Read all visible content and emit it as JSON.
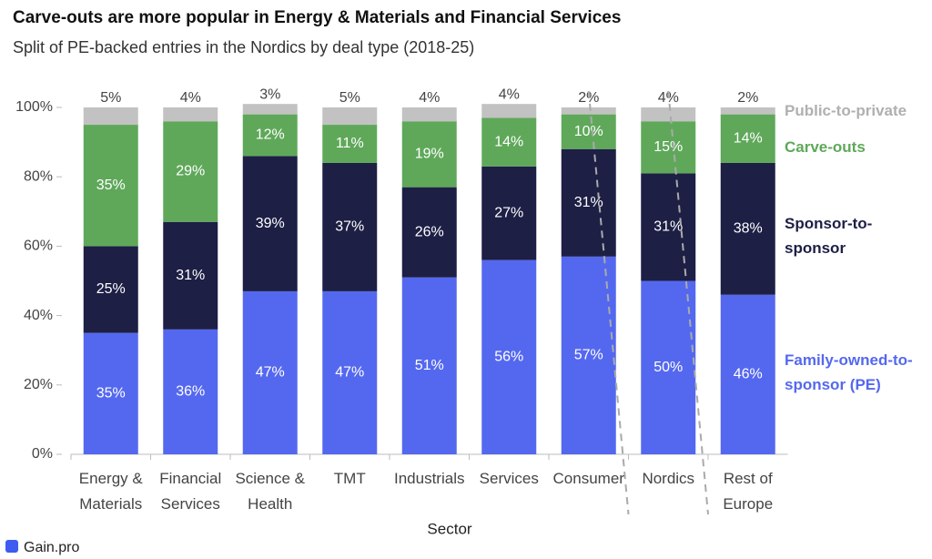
{
  "chart_data": {
    "type": "stacked_bar",
    "title": "Carve-outs are more popular in Energy & Materials and Financial Services",
    "subtitle": "Split of PE-backed entries in the Nordics by deal type (2018-25)",
    "x_label": "Sector",
    "footer": "Gain.pro",
    "categories": [
      "Energy & Materials",
      "Financial Services",
      "Science & Health",
      "TMT",
      "Industrials",
      "Services",
      "Consumer",
      "Nordics",
      "Rest of Europe"
    ],
    "series": [
      {
        "name": "Family-owned-to- sponsor (PE)",
        "color": "#5468ef",
        "values": [
          35,
          36,
          47,
          47,
          51,
          56,
          57,
          50,
          46
        ],
        "value_labels": [
          "35%",
          "36%",
          "47%",
          "47%",
          "51%",
          "56%",
          "57%",
          "50%",
          "46%"
        ]
      },
      {
        "name": "Sponsor-to-sponsor",
        "color": "#1d1f45",
        "values": [
          25,
          31,
          39,
          37,
          26,
          27,
          31,
          31,
          38
        ],
        "value_labels": [
          "25%",
          "31%",
          "39%",
          "37%",
          "26%",
          "27%",
          "31%",
          "31%",
          "38%"
        ]
      },
      {
        "name": "Carve-outs",
        "color": "#5fa85a",
        "values": [
          35,
          29,
          12,
          11,
          19,
          14,
          10,
          15,
          14
        ],
        "value_labels": [
          "35%",
          "29%",
          "12%",
          "11%",
          "19%",
          "14%",
          "10%",
          "15%",
          "14%"
        ]
      },
      {
        "name": "Public-to-private",
        "color": "#c2c2c2",
        "values": [
          5,
          4,
          3,
          5,
          4,
          4,
          2,
          4,
          2
        ],
        "value_labels": [
          "5%",
          "4%",
          "3%",
          "5%",
          "4%",
          "4%",
          "2%",
          "4%",
          "2%"
        ]
      }
    ],
    "ylim": [
      0,
      100
    ],
    "yticks": [
      {
        "value": 0,
        "label": "0%"
      },
      {
        "value": 20,
        "label": "20%"
      },
      {
        "value": 40,
        "label": "40%"
      },
      {
        "value": 60,
        "label": "60%"
      },
      {
        "value": 80,
        "label": "80%"
      },
      {
        "value": 100,
        "label": "100%"
      }
    ]
  }
}
